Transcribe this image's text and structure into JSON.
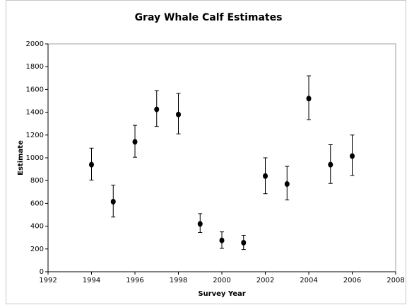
{
  "chart_data": {
    "type": "scatter",
    "title": "Gray Whale Calf Estimates",
    "x_label": "Survey Year",
    "y_label": "Estimate",
    "xlim": [
      1992,
      2008
    ],
    "xticks": [
      1992,
      1994,
      1996,
      1998,
      2000,
      2002,
      2004,
      2006,
      2008
    ],
    "ylim": [
      0,
      2000
    ],
    "yticks": [
      0,
      200,
      400,
      600,
      800,
      1000,
      1200,
      1400,
      1600,
      1800,
      2000
    ],
    "series": [
      {
        "color": "#000000",
        "x": [
          1994,
          1995,
          1996,
          1997,
          1998,
          1999,
          2000,
          2001,
          2002,
          2003,
          2004,
          2005,
          2006
        ],
        "values": [
          940,
          615,
          1140,
          1425,
          1380,
          420,
          275,
          255,
          840,
          770,
          1520,
          940,
          1015
        ],
        "lower": [
          805,
          480,
          1005,
          1275,
          1210,
          345,
          205,
          195,
          685,
          630,
          1335,
          775,
          845
        ],
        "upper": [
          1085,
          760,
          1285,
          1590,
          1565,
          510,
          350,
          320,
          1000,
          925,
          1720,
          1115,
          1200
        ]
      }
    ]
  }
}
